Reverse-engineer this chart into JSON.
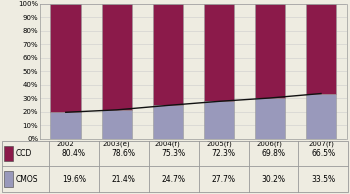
{
  "categories": [
    "2002",
    "2003(e)",
    "2004(f)",
    "2005(f)",
    "2006(f)",
    "2007(f)"
  ],
  "ccd_values": [
    80.4,
    78.6,
    75.3,
    72.3,
    69.8,
    66.5
  ],
  "cmos_values": [
    19.6,
    21.4,
    24.7,
    27.7,
    30.2,
    33.5
  ],
  "ccd_label": "CCD",
  "cmos_label": "CMOS",
  "ccd_color": "#8B1A4A",
  "cmos_color": "#9999BB",
  "line_color": "#111111",
  "bar_edge_color": "#999999",
  "background_color": "#EEECE1",
  "chart_bg": "#EEECE1",
  "ylim": [
    0,
    100
  ],
  "yticks": [
    0,
    10,
    20,
    30,
    40,
    50,
    60,
    70,
    80,
    90,
    100
  ],
  "ytick_labels": [
    "0%",
    "10%",
    "20%",
    "30%",
    "40%",
    "50%",
    "60%",
    "70%",
    "80%",
    "90%",
    "100%"
  ],
  "grid_color": "#CCCCCC",
  "table_border_color": "#999999",
  "text_color": "#000000"
}
